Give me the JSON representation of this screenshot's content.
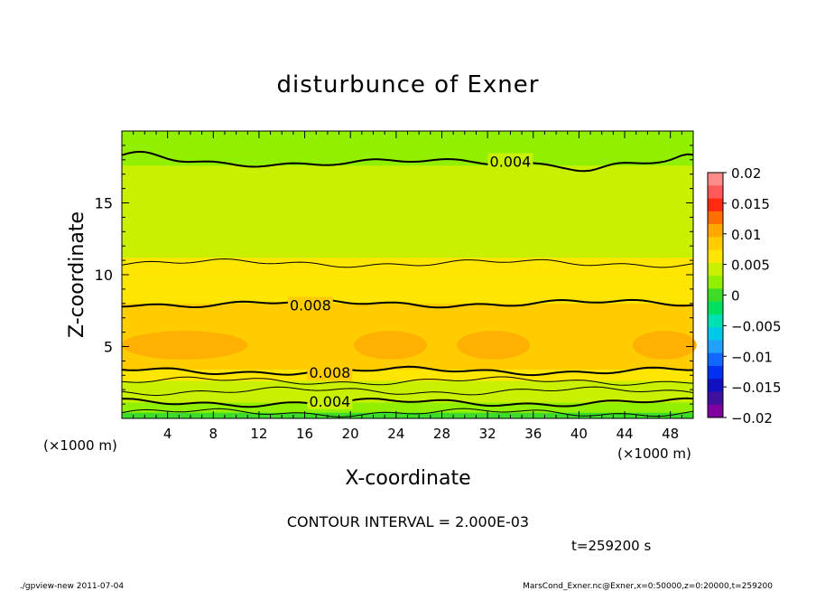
{
  "chart_data": {
    "type": "heatmap",
    "title": "disturbunce of Exner",
    "xlabel": "X-coordinate",
    "ylabel": "Z-coordinate",
    "x_unit": "(×1000 m)",
    "y_unit": "(×1000 m)",
    "xlim": [
      0,
      50
    ],
    "ylim": [
      0,
      20
    ],
    "x_ticks": [
      4,
      8,
      12,
      16,
      20,
      24,
      28,
      32,
      36,
      40,
      44,
      48
    ],
    "y_ticks": [
      5,
      10,
      15
    ],
    "colorbar": {
      "ticks": [
        "0.02",
        "0.015",
        "0.01",
        "0.005",
        "0",
        "−0.005",
        "−0.01",
        "−0.015",
        "−0.02"
      ],
      "range": [
        -0.02,
        0.02
      ],
      "colors": [
        "#ff8a8a",
        "#ff5a5a",
        "#ff2a10",
        "#ff7000",
        "#ffa800",
        "#ffcc00",
        "#ffe600",
        "#c8f000",
        "#90f000",
        "#3cdc28",
        "#00e060",
        "#00e0b0",
        "#00c8e8",
        "#20a0ff",
        "#1068ff",
        "#0030f0",
        "#1010c0",
        "#4010a0",
        "#8000a0"
      ]
    },
    "contour_labels": [
      {
        "text": "0.004",
        "x": 34,
        "z": 17.9
      },
      {
        "text": "0.008",
        "x": 16.5,
        "z": 7.9
      },
      {
        "text": "0.008",
        "x": 18.2,
        "z": 3.2
      },
      {
        "text": "0.004",
        "x": 18.2,
        "z": 1.2
      }
    ],
    "contour_interval": "CONTOUR INTERVAL = 2.000E-03",
    "time": "t=259200 s",
    "bands": [
      {
        "z0": 0.0,
        "z1": 0.4,
        "value": 0.001
      },
      {
        "z0": 0.4,
        "z1": 1.1,
        "value": 0.003
      },
      {
        "z0": 1.1,
        "z1": 1.9,
        "value": 0.004
      },
      {
        "z0": 1.9,
        "z1": 2.6,
        "value": 0.005
      },
      {
        "z0": 2.6,
        "z1": 3.4,
        "value": 0.006
      },
      {
        "z0": 3.4,
        "z1": 8.0,
        "value": 0.009
      },
      {
        "z0": 8.0,
        "z1": 9.7,
        "value": 0.007
      },
      {
        "z0": 9.7,
        "z1": 11.2,
        "value": 0.006
      },
      {
        "z0": 11.2,
        "z1": 13.5,
        "value": 0.005
      },
      {
        "z0": 13.5,
        "z1": 17.6,
        "value": 0.004
      },
      {
        "z0": 17.6,
        "z1": 20.0,
        "value": 0.003
      }
    ],
    "maxima_blobs": [
      {
        "x": 5.5,
        "z": 5.1
      },
      {
        "x": 23.5,
        "z": 5.1
      },
      {
        "x": 32.5,
        "z": 5.1
      },
      {
        "x": 47.5,
        "z": 5.1
      }
    ]
  },
  "footer": {
    "left": "./gpview-new   2011-07-04",
    "right": "MarsCond_Exner.nc@Exner,x=0:50000,z=0:20000,t=259200"
  }
}
